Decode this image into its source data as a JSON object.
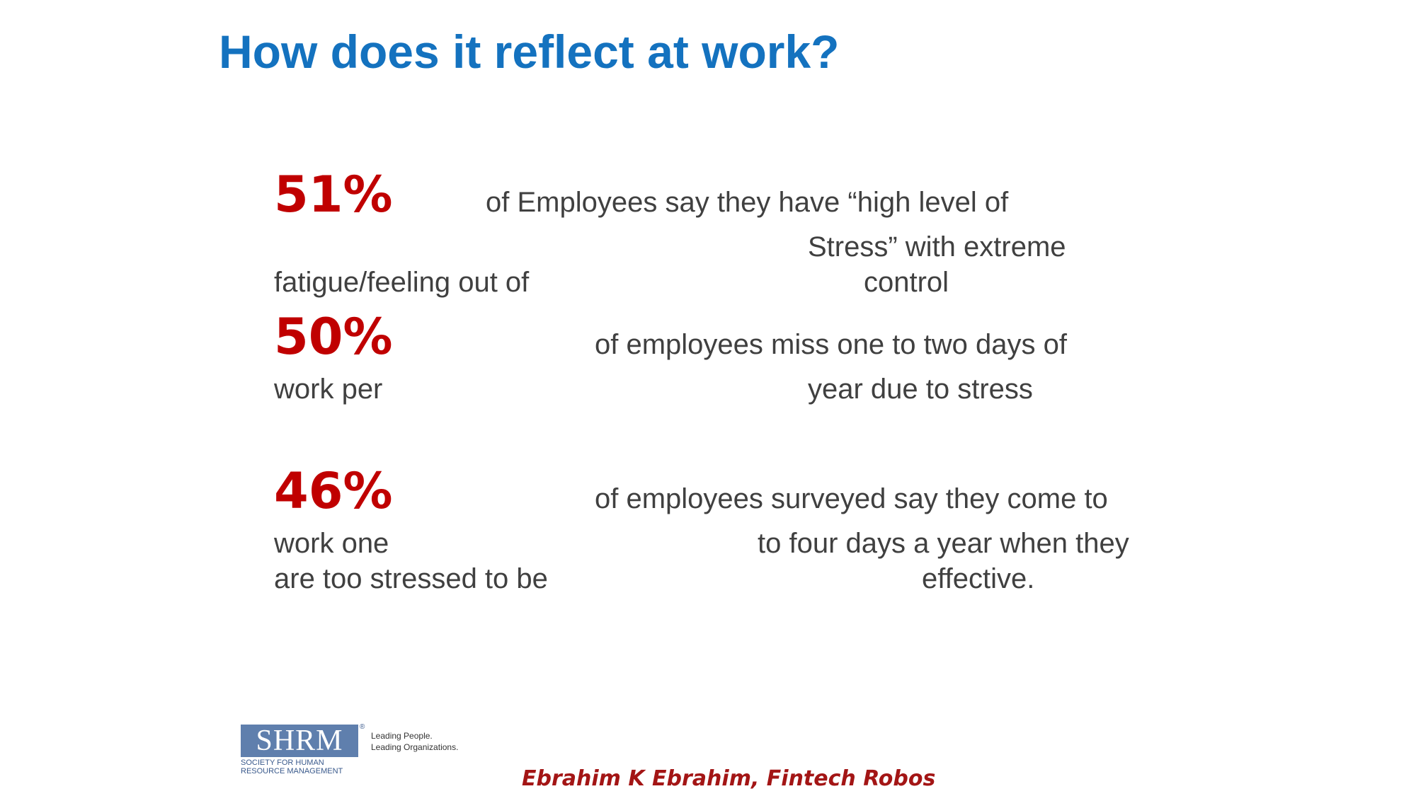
{
  "slide": {
    "title": "How does it reflect at work?"
  },
  "stats": [
    {
      "value": "51%",
      "lines": [
        "of Employees say they have “high level of",
        "Stress” with extreme",
        "fatigue/feeling out of",
        "control"
      ]
    },
    {
      "value": "50%",
      "lines": [
        "of employees miss one to two days of",
        "work per",
        "year due to stress"
      ]
    },
    {
      "value": "46%",
      "lines": [
        "of employees surveyed say they come to",
        "work one",
        "to four days a year when they",
        "are too stressed to be",
        "effective."
      ]
    }
  ],
  "logo": {
    "letters": "SHRM",
    "registered": "®",
    "subtitle_line1": "SOCIETY FOR HUMAN",
    "subtitle_line2": "RESOURCE MANAGEMENT",
    "tagline_line1": "Leading People.",
    "tagline_line2": "Leading Organizations."
  },
  "footer": {
    "credit": "Ebrahim K Ebrahim, Fintech Robos"
  },
  "colors": {
    "title": "#1472bf",
    "percent": "#c00000",
    "body_text": "#404040",
    "credit": "#a31515",
    "logo_box": "#5f7fad"
  }
}
